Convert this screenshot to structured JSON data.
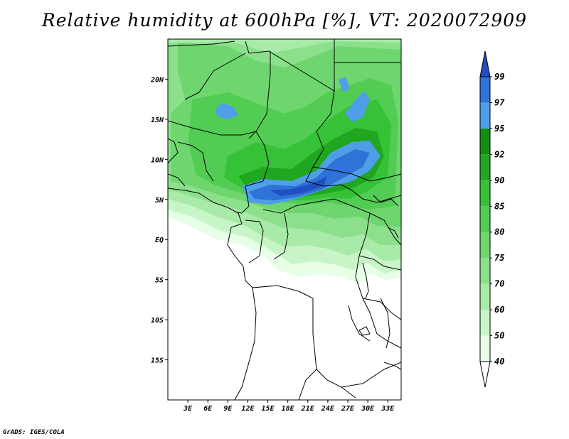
{
  "title": "Relative humidity at 600hPa [%], VT: 2020072909",
  "footer": "GrADS: IGES/COLA",
  "map": {
    "lon_range": [
      0,
      35
    ],
    "lat_range": [
      -20,
      25
    ],
    "y_ticks": [
      {
        "lat": 20,
        "label": "20N"
      },
      {
        "lat": 15,
        "label": "15N"
      },
      {
        "lat": 10,
        "label": "10N"
      },
      {
        "lat": 5,
        "label": "5N"
      },
      {
        "lat": 0,
        "label": "EQ"
      },
      {
        "lat": -5,
        "label": "5S"
      },
      {
        "lat": -10,
        "label": "10S"
      },
      {
        "lat": -15,
        "label": "15S"
      }
    ],
    "x_ticks": [
      {
        "lon": 3,
        "label": "3E"
      },
      {
        "lon": 6,
        "label": "6E"
      },
      {
        "lon": 9,
        "label": "9E"
      },
      {
        "lon": 12,
        "label": "12E"
      },
      {
        "lon": 15,
        "label": "15E"
      },
      {
        "lon": 18,
        "label": "18E"
      },
      {
        "lon": 21,
        "label": "21E"
      },
      {
        "lon": 24,
        "label": "24E"
      },
      {
        "lon": 27,
        "label": "27E"
      },
      {
        "lon": 30,
        "label": "30E"
      },
      {
        "lon": 33,
        "label": "33E"
      }
    ]
  },
  "colorbar": {
    "levels": [
      "40",
      "50",
      "60",
      "70",
      "75",
      "80",
      "85",
      "90",
      "92",
      "95",
      "97",
      "99"
    ],
    "colors": [
      "#e6ffe6",
      "#c8f5c8",
      "#a8eaa8",
      "#8ce08c",
      "#6fd66f",
      "#52cc52",
      "#36c236",
      "#1fa81f",
      "#128f12",
      "#4f9ee8",
      "#2f72d8",
      "#1f4fc0"
    ]
  }
}
